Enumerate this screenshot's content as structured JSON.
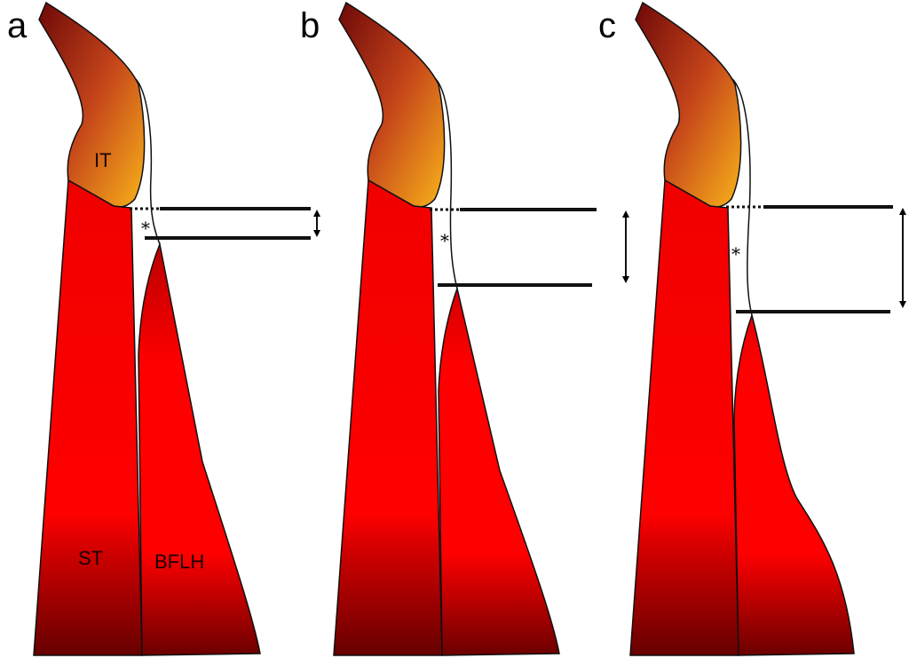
{
  "panels": [
    {
      "letter": "a",
      "asterisk": "*",
      "gap_level": "small"
    },
    {
      "letter": "b",
      "asterisk": "*",
      "gap_level": "medium"
    },
    {
      "letter": "c",
      "asterisk": "*",
      "gap_level": "large"
    }
  ],
  "labels": {
    "it": "IT",
    "st": "ST",
    "bflh": "BFLH"
  },
  "colors": {
    "it_top": "#7a0c0c",
    "it_bottom": "#f7a81b",
    "muscle": "#ff0000",
    "muscle_dark": "#6e0000"
  }
}
